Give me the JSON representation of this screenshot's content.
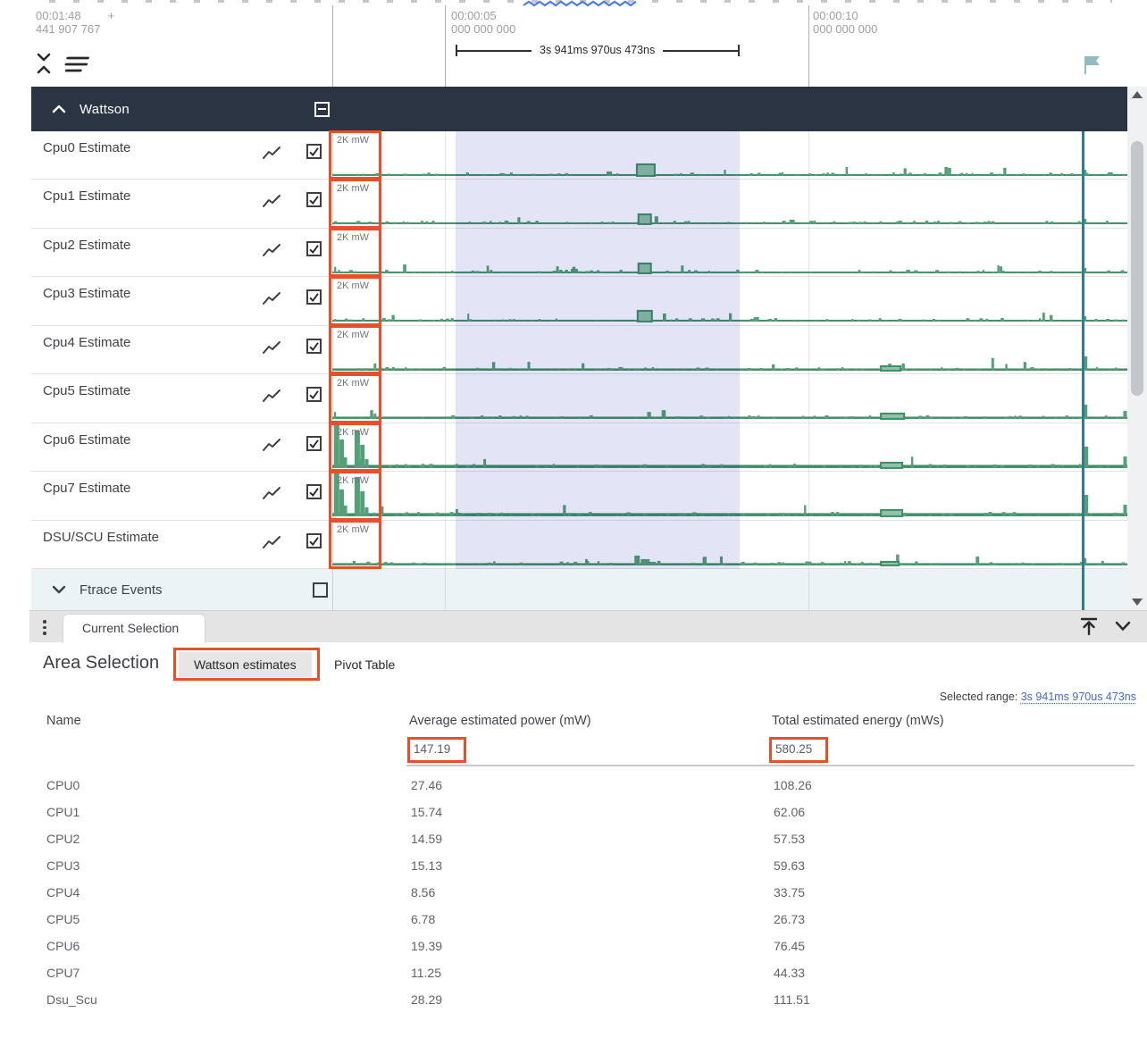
{
  "ruler": {
    "start": {
      "time": "00:01:48",
      "plus": "+",
      "sub": "441 907 767"
    },
    "ticks": [
      {
        "time": "00:00:05",
        "sub": "000 000 000"
      },
      {
        "time": "00:00:10",
        "sub": "000 000 000"
      }
    ],
    "range_label": "3s 941ms 970us 473ns"
  },
  "icons": {
    "collapse_all": "unfold-less-icon",
    "track_filter": "sort-lines-icon",
    "flag": "flag-icon",
    "line_chart": "line-chart-icon",
    "kebab": "kebab-menu-icon",
    "dock_top": "arrow-up-to-line-icon",
    "collapse_panel": "chevron-down-icon"
  },
  "tracks": {
    "group": {
      "label": "Wattson",
      "checkbox": "indeterminate"
    },
    "rows": [
      {
        "label": "Cpu0 Estimate",
        "scale": "2K mW",
        "checkbox": "checked",
        "seed": 11,
        "baseline": 2,
        "noise": 3,
        "bumps": [
          [
            0.383,
            13,
            20
          ],
          [
            0.345,
            5,
            6
          ],
          [
            0.77,
            10,
            4
          ],
          [
            0.944,
            7,
            4
          ],
          [
            0.975,
            4,
            6
          ]
        ]
      },
      {
        "label": "Cpu1 Estimate",
        "scale": "2K mW",
        "checkbox": "checked",
        "seed": 23,
        "baseline": 2,
        "noise": 3,
        "bumps": [
          [
            0.385,
            11,
            14
          ],
          [
            0.575,
            5,
            6
          ],
          [
            0.944,
            6,
            4
          ]
        ]
      },
      {
        "label": "Cpu2 Estimate",
        "scale": "2K mW",
        "checkbox": "checked",
        "seed": 37,
        "baseline": 2,
        "noise": 3,
        "bumps": [
          [
            0.385,
            11,
            14
          ],
          [
            0.3,
            5,
            8
          ],
          [
            0.944,
            6,
            4
          ]
        ]
      },
      {
        "label": "Cpu3 Estimate",
        "scale": "2K mW",
        "checkbox": "checked",
        "seed": 41,
        "baseline": 2,
        "noise": 3,
        "bumps": [
          [
            0.384,
            12,
            16
          ],
          [
            0.53,
            5,
            6
          ],
          [
            0.893,
            10,
            3
          ],
          [
            0.944,
            6,
            4
          ]
        ]
      },
      {
        "label": "Cpu4 Estimate",
        "scale": "2K mW",
        "checkbox": "checked",
        "seed": 53,
        "baseline": 2.5,
        "noise": 3,
        "bumps": [
          [
            0.052,
            8,
            3
          ],
          [
            0.36,
            4,
            5
          ],
          [
            0.69,
            5,
            22
          ],
          [
            0.829,
            14,
            3
          ],
          [
            0.944,
            16,
            5
          ]
        ]
      },
      {
        "label": "Cpu5 Estimate",
        "scale": "2K mW",
        "checkbox": "checked",
        "seed": 67,
        "baseline": 2.5,
        "noise": 3,
        "bumps": [
          [
            0.052,
            6,
            3
          ],
          [
            0.69,
            6,
            26
          ],
          [
            0.944,
            16,
            5
          ],
          [
            0.995,
            9,
            4
          ]
        ]
      },
      {
        "label": "Cpu6 Estimate",
        "scale": "2K mW",
        "checkbox": "checked",
        "seed": 79,
        "baseline": 3.5,
        "noise": 4,
        "bumps": [
          [
            0.002,
            50,
            6
          ],
          [
            0.009,
            32,
            5
          ],
          [
            0.014,
            12,
            4
          ],
          [
            0.028,
            42,
            6
          ],
          [
            0.035,
            26,
            5
          ],
          [
            0.041,
            10,
            4
          ],
          [
            0.19,
            10,
            3
          ],
          [
            0.69,
            6,
            24
          ],
          [
            0.944,
            24,
            6
          ],
          [
            0.995,
            13,
            4
          ]
        ]
      },
      {
        "label": "Cpu7 Estimate",
        "scale": "2K mW",
        "checkbox": "checked",
        "seed": 83,
        "baseline": 3.5,
        "noise": 4,
        "bumps": [
          [
            0.002,
            48,
            6
          ],
          [
            0.009,
            30,
            5
          ],
          [
            0.014,
            12,
            4
          ],
          [
            0.028,
            44,
            6
          ],
          [
            0.035,
            28,
            5
          ],
          [
            0.041,
            10,
            4
          ],
          [
            0.155,
            8,
            3
          ],
          [
            0.69,
            7,
            24
          ],
          [
            0.944,
            24,
            6
          ],
          [
            0.995,
            13,
            4
          ]
        ]
      },
      {
        "label": "DSU/SCU Estimate",
        "scale": "2K mW",
        "checkbox": "checked",
        "seed": 97,
        "baseline": 2.5,
        "noise": 4,
        "bumps": [
          [
            0.318,
            7,
            3
          ],
          [
            0.38,
            11,
            6
          ],
          [
            0.388,
            7,
            10
          ],
          [
            0.398,
            4,
            8
          ],
          [
            0.69,
            4,
            20
          ],
          [
            0.944,
            8,
            4
          ]
        ]
      }
    ],
    "ftrace": {
      "label": "Ftrace Events",
      "checkbox": "unchecked"
    }
  },
  "bottom_bar": {
    "tab": "Current Selection"
  },
  "details": {
    "title": "Area Selection",
    "tabs": [
      {
        "label": "Wattson estimates",
        "active": true
      },
      {
        "label": "Pivot Table",
        "active": false
      }
    ],
    "selected_range_label": "Selected range:",
    "selected_range_value": "3s 941ms 970us 473ns",
    "table": {
      "columns": [
        "Name",
        "Average estimated power (mW)",
        "Total estimated energy (mWs)"
      ],
      "totals": {
        "avg_power": "147.19",
        "total_energy": "580.25"
      },
      "rows": [
        [
          "CPU0",
          "27.46",
          "108.26"
        ],
        [
          "CPU1",
          "15.74",
          "62.06"
        ],
        [
          "CPU2",
          "14.59",
          "57.53"
        ],
        [
          "CPU3",
          "15.13",
          "59.63"
        ],
        [
          "CPU4",
          "8.56",
          "33.75"
        ],
        [
          "CPU5",
          "6.78",
          "26.73"
        ],
        [
          "CPU6",
          "19.39",
          "76.45"
        ],
        [
          "CPU7",
          "11.25",
          "44.33"
        ],
        [
          "Dsu_Scu",
          "28.29",
          "111.51"
        ]
      ]
    }
  },
  "colors": {
    "annotation_orange": "#e8502b",
    "waveform_green": "#54a077",
    "waveform_green_line": "#3f8f66",
    "selection_lavender": "#e3e5f7",
    "marker_teal": "#2c7f91",
    "group_header_bg": "#2b3442",
    "link_blue": "#4169d8"
  }
}
